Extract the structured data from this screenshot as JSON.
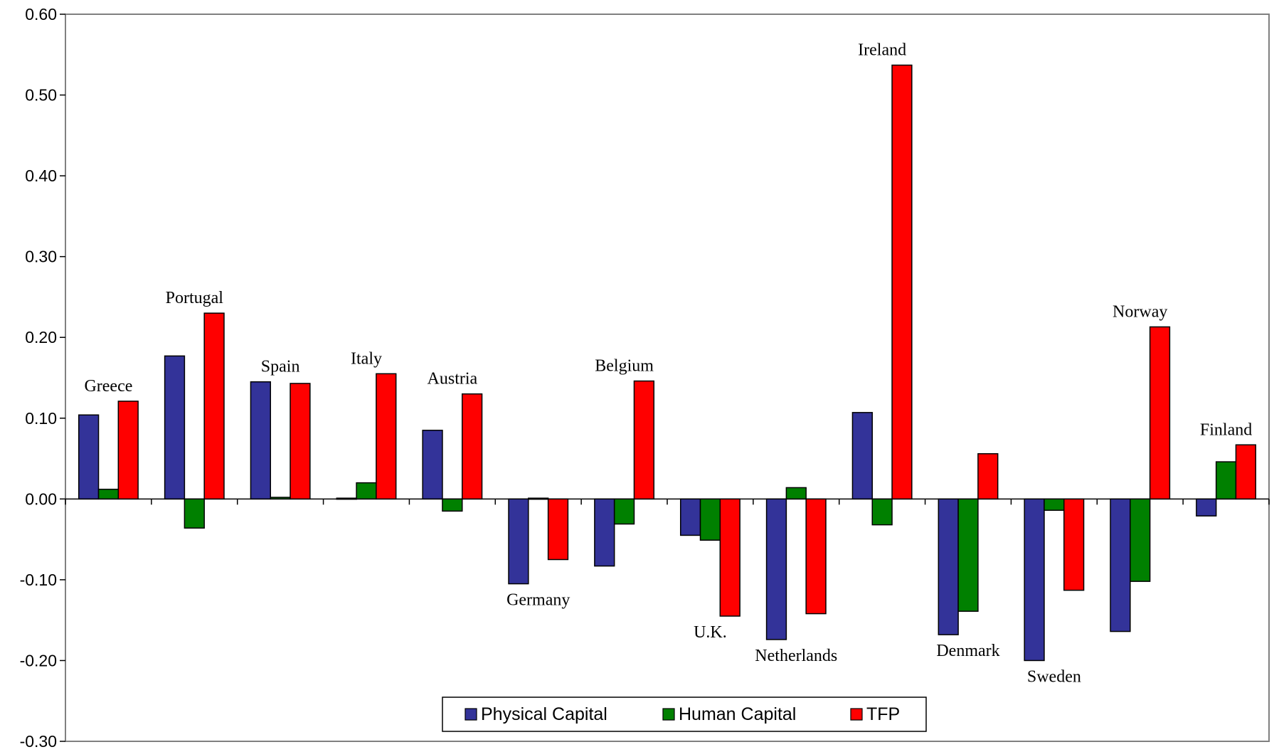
{
  "chart_data": {
    "type": "bar",
    "title": "",
    "xlabel": "",
    "ylabel": "",
    "ylim": [
      -0.3,
      0.6
    ],
    "yticks": [
      "0.60",
      "0.50",
      "0.40",
      "0.30",
      "0.20",
      "0.10",
      "0.00",
      "-0.10",
      "-0.20",
      "-0.30"
    ],
    "ytick_values": [
      0.6,
      0.5,
      0.4,
      0.3,
      0.2,
      0.1,
      0.0,
      -0.1,
      -0.2,
      -0.3
    ],
    "grid": false,
    "legend_position": "bottom-center",
    "categories": [
      "Greece",
      "Portugal",
      "Spain",
      "Italy",
      "Austria",
      "Germany",
      "Belgium",
      "U.K.",
      "Netherlands",
      "Ireland",
      "Denmark",
      "Sweden",
      "Norway",
      "Finland"
    ],
    "series": [
      {
        "name": "Physical Capital",
        "color": "#333399",
        "values": [
          0.104,
          0.177,
          0.145,
          0.001,
          0.085,
          -0.105,
          -0.083,
          -0.045,
          -0.174,
          0.107,
          -0.168,
          -0.2,
          -0.164,
          -0.021
        ]
      },
      {
        "name": "Human Capital",
        "color": "#008000",
        "values": [
          0.012,
          -0.036,
          0.002,
          0.02,
          -0.015,
          0.001,
          -0.031,
          -0.051,
          0.014,
          -0.032,
          -0.139,
          -0.014,
          -0.102,
          0.046
        ]
      },
      {
        "name": "TFP",
        "color": "#ff0000",
        "values": [
          0.121,
          0.23,
          0.143,
          0.155,
          0.13,
          -0.075,
          0.146,
          -0.145,
          -0.142,
          0.537,
          0.056,
          -0.113,
          0.213,
          0.067
        ]
      }
    ]
  }
}
